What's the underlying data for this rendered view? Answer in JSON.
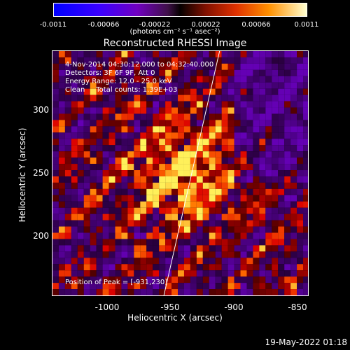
{
  "colorbar": {
    "ticks": [
      "-0.0011",
      "-0.00066",
      "-0.00022",
      "0.00022",
      "0.00066",
      "0.0011"
    ],
    "units": "(photons cm⁻² s⁻¹ asec⁻²)",
    "range": [
      -0.0011,
      0.0011
    ]
  },
  "title": "Reconstructed RHESSI Image",
  "info": {
    "time": "4-Nov-2014 04:30:12.000 to 04:32:40.000",
    "detectors": "Detectors: 3F 6F 9F, Att 0",
    "energy": "Energy Range: 12.0 - 25.0 keV",
    "clean": "Clean     Total counts: 1.39E+03"
  },
  "peak_label": "Position of Peak = [-931,230]",
  "axes": {
    "xlabel": "Heliocentric X (arcsec)",
    "ylabel": "Heliocentric Y (arcsec)",
    "xticks": [
      "-1000",
      "-950",
      "-900",
      "-850"
    ],
    "yticks": [
      "300",
      "250",
      "200"
    ],
    "xlim": [
      -1045,
      -848
    ],
    "ylim": [
      153,
      342
    ]
  },
  "footer_timestamp": "19-May-2022 01:18",
  "chart_data": {
    "type": "heatmap",
    "title": "Reconstructed RHESSI Image",
    "xlabel": "Heliocentric X (arcsec)",
    "ylabel": "Heliocentric Y (arcsec)",
    "peak": {
      "x": -931,
      "y": 230
    },
    "xlim": [
      -1045,
      -848
    ],
    "ylim": [
      153,
      342
    ]
  }
}
